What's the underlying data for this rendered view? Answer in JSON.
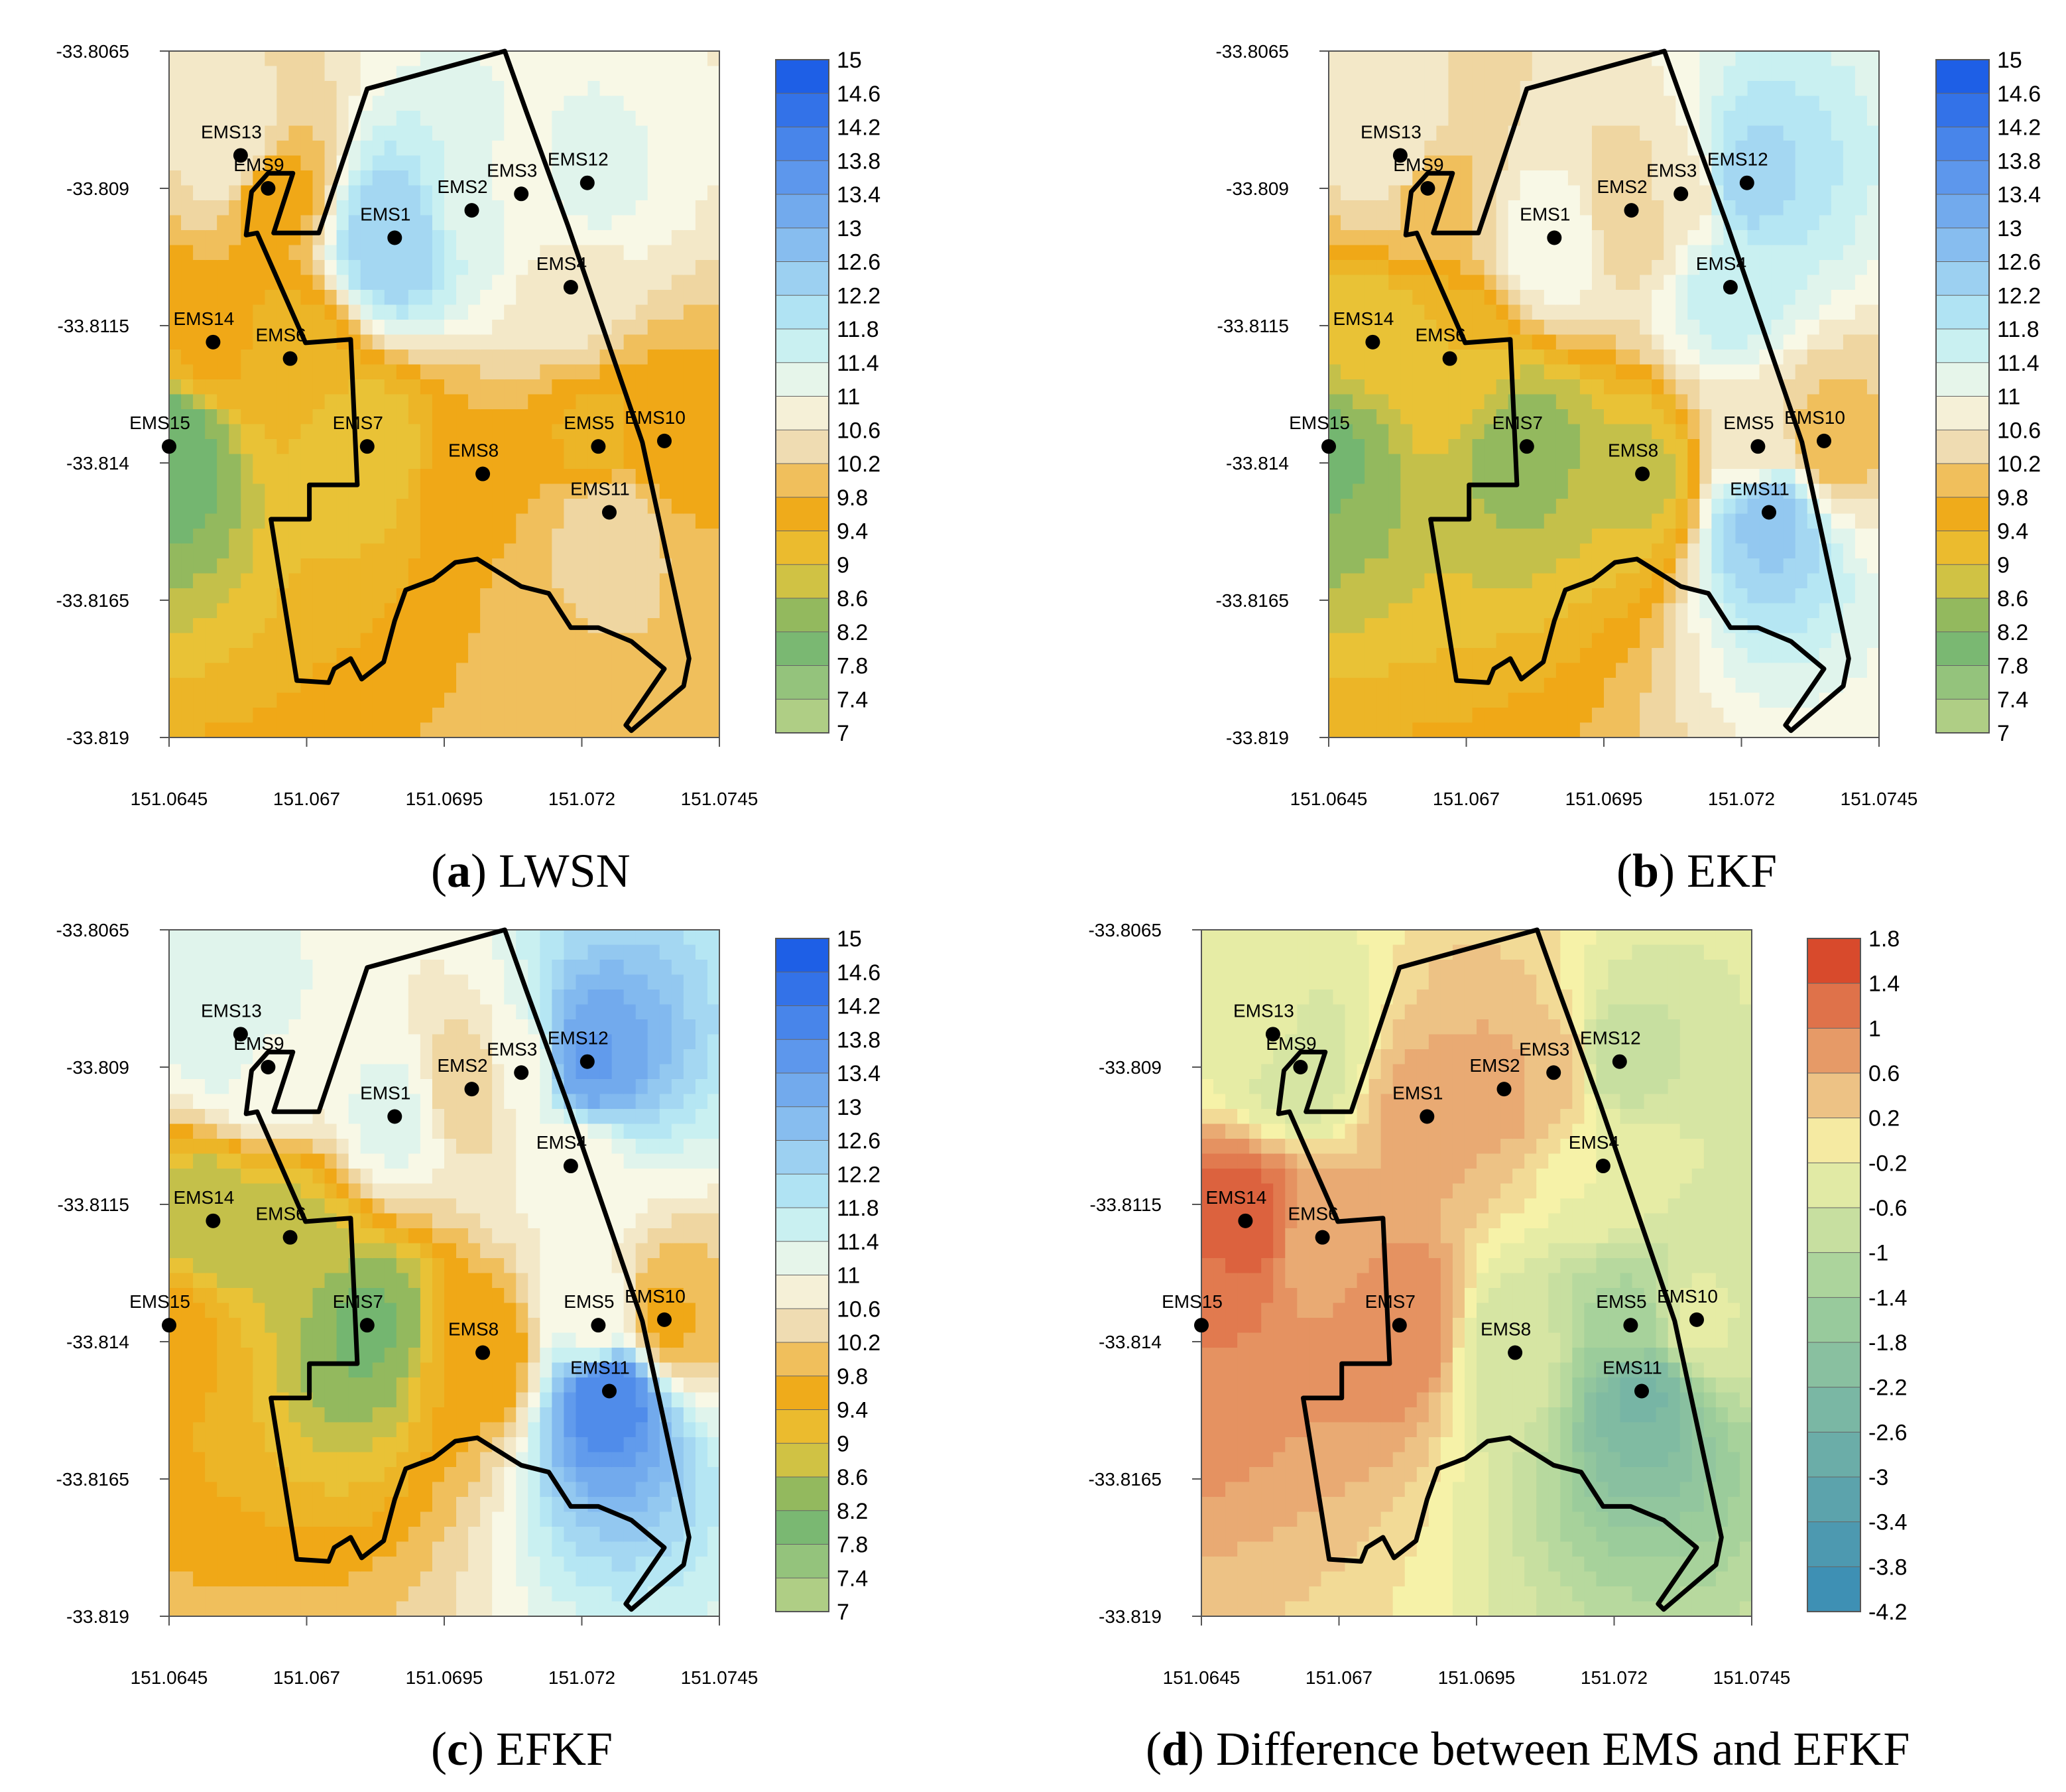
{
  "figure": {
    "captions": [
      {
        "label": "a",
        "text": "LWSN"
      },
      {
        "label": "b",
        "text": "EKF"
      },
      {
        "label": "c",
        "text": "EFKF"
      },
      {
        "label": "d",
        "text": "Difference between EMS and EFKF"
      }
    ]
  },
  "colors": {
    "low": "#c9d98f",
    "green": "#6fb46e",
    "yellow": "#e8c53a",
    "orange": "#f0a817",
    "tan": "#efdcb2",
    "pale": "#f8f8e6",
    "cyan": "#bdeef4",
    "blue": "#1e5fe6",
    "diff_neg": "#2f86b8",
    "diff_mid": "#f6f2a8",
    "diff_pos": "#d84a2c"
  },
  "chart_data": [
    {
      "type": "contour",
      "title": "LWSN",
      "xlabel": "",
      "ylabel": "",
      "xlim": [
        151.0645,
        151.0745
      ],
      "ylim": [
        -33.819,
        -33.8065
      ],
      "xticks": [
        "151.0645",
        "151.067",
        "151.0695",
        "151.072",
        "151.0745"
      ],
      "yticks": [
        "-33.8065",
        "-33.809",
        "-33.8115",
        "-33.814",
        "-33.8165",
        "-33.819"
      ],
      "colorbar_ticks": [
        "15",
        "14.6",
        "14.2",
        "13.8",
        "13.4",
        "13",
        "12.6",
        "12.2",
        "11.8",
        "11.4",
        "11",
        "10.6",
        "10.2",
        "9.8",
        "9.4",
        "9",
        "8.6",
        "8.2",
        "7.8",
        "7.4",
        "7"
      ],
      "stations": [
        {
          "name": "EMS1",
          "lon": 151.0686,
          "lat": -33.8099,
          "value": 12.6
        },
        {
          "name": "EMS2",
          "lon": 151.07,
          "lat": -33.8094,
          "value": 11.6
        },
        {
          "name": "EMS3",
          "lon": 151.0709,
          "lat": -33.8091,
          "value": 11.2
        },
        {
          "name": "EMS4",
          "lon": 151.0718,
          "lat": -33.8108,
          "value": 10.8
        },
        {
          "name": "EMS5",
          "lon": 151.0723,
          "lat": -33.8137,
          "value": 9.6
        },
        {
          "name": "EMS6",
          "lon": 151.0667,
          "lat": -33.8121,
          "value": 9.5
        },
        {
          "name": "EMS7",
          "lon": 151.0681,
          "lat": -33.8137,
          "value": 9.2
        },
        {
          "name": "EMS8",
          "lon": 151.0702,
          "lat": -33.8142,
          "value": 10.0
        },
        {
          "name": "EMS9",
          "lon": 151.0663,
          "lat": -33.809,
          "value": 9.8
        },
        {
          "name": "EMS10",
          "lon": 151.0735,
          "lat": -33.8136,
          "value": 9.8
        },
        {
          "name": "EMS11",
          "lon": 151.0725,
          "lat": -33.8149,
          "value": 10.6
        },
        {
          "name": "EMS12",
          "lon": 151.0721,
          "lat": -33.8089,
          "value": 11.4
        },
        {
          "name": "EMS13",
          "lon": 151.0658,
          "lat": -33.8084,
          "value": 11.0
        },
        {
          "name": "EMS14",
          "lon": 151.0653,
          "lat": -33.8118,
          "value": 9.8
        },
        {
          "name": "EMS15",
          "lon": 151.0645,
          "lat": -33.8137,
          "value": 8.2
        }
      ]
    },
    {
      "type": "contour",
      "title": "EKF",
      "xlabel": "",
      "ylabel": "",
      "xlim": [
        151.0645,
        151.0745
      ],
      "ylim": [
        -33.819,
        -33.8065
      ],
      "xticks": [
        "151.0645",
        "151.067",
        "151.0695",
        "151.072",
        "151.0745"
      ],
      "yticks": [
        "-33.8065",
        "-33.809",
        "-33.8115",
        "-33.814",
        "-33.8165",
        "-33.819"
      ],
      "colorbar_ticks": [
        "15",
        "14.6",
        "14.2",
        "13.8",
        "13.4",
        "13",
        "12.6",
        "12.2",
        "11.8",
        "11.4",
        "11",
        "10.6",
        "10.2",
        "9.8",
        "9.4",
        "9",
        "8.6",
        "8.2",
        "7.8",
        "7.4",
        "7"
      ],
      "stations": [
        {
          "name": "EMS1",
          "lon": 151.0686,
          "lat": -33.8099,
          "value": 11.2
        },
        {
          "name": "EMS2",
          "lon": 151.07,
          "lat": -33.8094,
          "value": 10.4
        },
        {
          "name": "EMS3",
          "lon": 151.0709,
          "lat": -33.8091,
          "value": 10.8
        },
        {
          "name": "EMS4",
          "lon": 151.0718,
          "lat": -33.8108,
          "value": 11.8
        },
        {
          "name": "EMS5",
          "lon": 151.0723,
          "lat": -33.8137,
          "value": 10.8
        },
        {
          "name": "EMS6",
          "lon": 151.0667,
          "lat": -33.8121,
          "value": 9.4
        },
        {
          "name": "EMS7",
          "lon": 151.0681,
          "lat": -33.8137,
          "value": 8.6
        },
        {
          "name": "EMS8",
          "lon": 151.0702,
          "lat": -33.8142,
          "value": 9.0
        },
        {
          "name": "EMS9",
          "lon": 151.0663,
          "lat": -33.809,
          "value": 10.2
        },
        {
          "name": "EMS10",
          "lon": 151.0735,
          "lat": -33.8136,
          "value": 10.2
        },
        {
          "name": "EMS11",
          "lon": 151.0725,
          "lat": -33.8149,
          "value": 12.8
        },
        {
          "name": "EMS12",
          "lon": 151.0721,
          "lat": -33.8089,
          "value": 12.4
        },
        {
          "name": "EMS13",
          "lon": 151.0658,
          "lat": -33.8084,
          "value": 11.0
        },
        {
          "name": "EMS14",
          "lon": 151.0653,
          "lat": -33.8118,
          "value": 9.2
        },
        {
          "name": "EMS15",
          "lon": 151.0645,
          "lat": -33.8137,
          "value": 8.4
        }
      ]
    },
    {
      "type": "contour",
      "title": "EFKF",
      "xlabel": "",
      "ylabel": "",
      "xlim": [
        151.0645,
        151.0745
      ],
      "ylim": [
        -33.819,
        -33.8065
      ],
      "xticks": [
        "151.0645",
        "151.067",
        "151.0695",
        "151.072",
        "151.0745"
      ],
      "yticks": [
        "-33.8065",
        "-33.809",
        "-33.8115",
        "-33.814",
        "-33.8165",
        "-33.819"
      ],
      "colorbar_ticks": [
        "15",
        "14.6",
        "14.2",
        "13.8",
        "13.4",
        "13",
        "12.6",
        "12.2",
        "11.8",
        "11.4",
        "11",
        "10.6",
        "10.2",
        "9.8",
        "9.4",
        "9",
        "8.6",
        "8.2",
        "7.8",
        "7.4",
        "7"
      ],
      "stations": [
        {
          "name": "EMS1",
          "lon": 151.0686,
          "lat": -33.8099,
          "value": 11.4
        },
        {
          "name": "EMS2",
          "lon": 151.07,
          "lat": -33.8094,
          "value": 10.4
        },
        {
          "name": "EMS3",
          "lon": 151.0709,
          "lat": -33.8091,
          "value": 11.2
        },
        {
          "name": "EMS4",
          "lon": 151.0718,
          "lat": -33.8108,
          "value": 11.0
        },
        {
          "name": "EMS5",
          "lon": 151.0723,
          "lat": -33.8137,
          "value": 11.2
        },
        {
          "name": "EMS6",
          "lon": 151.0667,
          "lat": -33.8121,
          "value": 9.0
        },
        {
          "name": "EMS7",
          "lon": 151.0681,
          "lat": -33.8137,
          "value": 8.4
        },
        {
          "name": "EMS8",
          "lon": 151.0702,
          "lat": -33.8142,
          "value": 9.8
        },
        {
          "name": "EMS9",
          "lon": 151.0663,
          "lat": -33.809,
          "value": 11.2
        },
        {
          "name": "EMS10",
          "lon": 151.0735,
          "lat": -33.8136,
          "value": 10.0
        },
        {
          "name": "EMS11",
          "lon": 151.0725,
          "lat": -33.8149,
          "value": 14.2
        },
        {
          "name": "EMS12",
          "lon": 151.0721,
          "lat": -33.8089,
          "value": 13.6
        },
        {
          "name": "EMS13",
          "lon": 151.0658,
          "lat": -33.8084,
          "value": 11.6
        },
        {
          "name": "EMS14",
          "lon": 151.0653,
          "lat": -33.8118,
          "value": 8.8
        },
        {
          "name": "EMS15",
          "lon": 151.0645,
          "lat": -33.8137,
          "value": 9.8
        }
      ]
    },
    {
      "type": "contour",
      "title": "Difference between EMS and EFKF",
      "xlabel": "",
      "ylabel": "",
      "xlim": [
        151.0645,
        151.0745
      ],
      "ylim": [
        -33.819,
        -33.8065
      ],
      "xticks": [
        "151.0645",
        "151.067",
        "151.0695",
        "151.072",
        "151.0745"
      ],
      "yticks": [
        "-33.8065",
        "-33.809",
        "-33.8115",
        "-33.814",
        "-33.8165",
        "-33.819"
      ],
      "colorbar_ticks": [
        "1.8",
        "1.4",
        "1",
        "0.6",
        "0.2",
        "-0.2",
        "-0.6",
        "-1",
        "-1.4",
        "-1.8",
        "-2.2",
        "-2.6",
        "-3",
        "-3.4",
        "-3.8",
        "-4.2"
      ],
      "stations": [
        {
          "name": "EMS1",
          "lon": 151.0686,
          "lat": -33.8099,
          "value": 0.8
        },
        {
          "name": "EMS2",
          "lon": 151.07,
          "lat": -33.8094,
          "value": 0.8
        },
        {
          "name": "EMS3",
          "lon": 151.0709,
          "lat": -33.8091,
          "value": 0.6
        },
        {
          "name": "EMS4",
          "lon": 151.0718,
          "lat": -33.8108,
          "value": 0.0
        },
        {
          "name": "EMS5",
          "lon": 151.0723,
          "lat": -33.8137,
          "value": -1.0
        },
        {
          "name": "EMS6",
          "lon": 151.0667,
          "lat": -33.8121,
          "value": 0.8
        },
        {
          "name": "EMS7",
          "lon": 151.0681,
          "lat": -33.8137,
          "value": 1.2
        },
        {
          "name": "EMS8",
          "lon": 151.0702,
          "lat": -33.8142,
          "value": -0.4
        },
        {
          "name": "EMS9",
          "lon": 151.0663,
          "lat": -33.809,
          "value": -0.4
        },
        {
          "name": "EMS10",
          "lon": 151.0735,
          "lat": -33.8136,
          "value": -0.2
        },
        {
          "name": "EMS11",
          "lon": 151.0725,
          "lat": -33.8149,
          "value": -2.2
        },
        {
          "name": "EMS12",
          "lon": 151.0721,
          "lat": -33.8089,
          "value": -0.6
        },
        {
          "name": "EMS13",
          "lon": 151.0658,
          "lat": -33.8084,
          "value": -0.2
        },
        {
          "name": "EMS14",
          "lon": 151.0653,
          "lat": -33.8118,
          "value": 1.6
        },
        {
          "name": "EMS15",
          "lon": 151.0645,
          "lat": -33.8137,
          "value": 1.2
        }
      ]
    }
  ]
}
